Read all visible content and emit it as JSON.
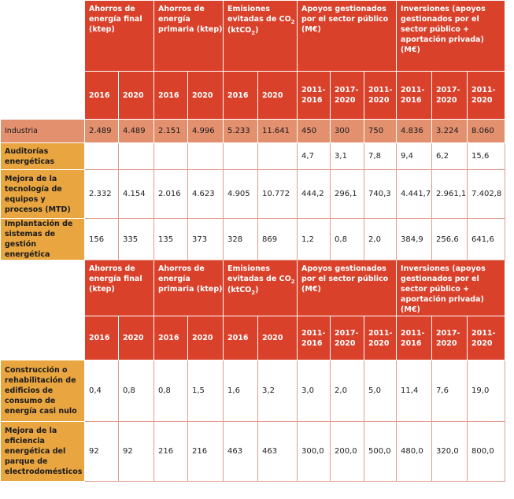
{
  "table1": {
    "groups": [
      {
        "label": "Ahorros de energía final (ktep)"
      },
      {
        "label": "Ahorros de energía primaria (ktep)"
      },
      {
        "label": "Emisiones evitadas de CO",
        "sub": "2",
        "tail": " (ktCO",
        "sub2": "2",
        "end": ")"
      },
      {
        "label": "Apoyos gestionados por el sector público (M€)"
      },
      {
        "label": "Inversiones (apoyos gestionados por el sector público + aportación privada) (M€)"
      }
    ],
    "subheaders": [
      "2016",
      "2020",
      "2016",
      "2020",
      "2016",
      "2020",
      "2011-2016",
      "2017-2020",
      "2011-2020",
      "2011-2016",
      "2017-2020",
      "2011-2020"
    ],
    "industry": {
      "label": "Industria",
      "values": [
        "2.489",
        "4.489",
        "2.151",
        "4.996",
        "5.233",
        "11.641",
        "450",
        "300",
        "750",
        "4.836",
        "3.224",
        "8.060"
      ]
    },
    "rows": [
      {
        "label": "Auditorías energéticas",
        "values": [
          "",
          "",
          "",
          "",
          "",
          "",
          "4,7",
          "3,1",
          "7,8",
          "9,4",
          "6,2",
          "15,6"
        ]
      },
      {
        "label": "Mejora de la tecnología de equipos y procesos (MTD)",
        "values": [
          "2.332",
          "4.154",
          "2.016",
          "4.623",
          "4.905",
          "10.772",
          "444,2",
          "296,1",
          "740,3",
          "4.441,7",
          "2.961,1",
          "7.402,8"
        ]
      },
      {
        "label": "Implantación de sistemas de gestión energética",
        "values": [
          "156",
          "335",
          "135",
          "373",
          "328",
          "869",
          "1,2",
          "0,8",
          "2,0",
          "384,9",
          "256,6",
          "641,6"
        ]
      }
    ]
  },
  "table2": {
    "groups": [
      {
        "label": "Ahorros de energía final (ktep)"
      },
      {
        "label": "Ahorros de energía primaria (ktep)"
      },
      {
        "label": "Emisiones evitadas de CO",
        "sub": "2",
        "tail": " (ktCO",
        "sub2": "2",
        "end": ")"
      },
      {
        "label": "Apoyos gestionados por el sector público (M€)"
      },
      {
        "label": "Inversiones (apoyos gestionados por el sector público + aportación privada) (M€)"
      }
    ],
    "subheaders": [
      "2016",
      "2020",
      "2016",
      "2020",
      "2016",
      "2020",
      "2011-2016",
      "2017-2020",
      "2011-2020",
      "2011-2016",
      "2017-2020",
      "2011-2020"
    ],
    "rows": [
      {
        "label": "Construcción o rehabilitación de edificios de consumo de energía casi nulo",
        "values": [
          "0,4",
          "0,8",
          "0,8",
          "1,5",
          "1,6",
          "3,2",
          "3,0",
          "2,0",
          "5,0",
          "11,4",
          "7,6",
          "19,0"
        ]
      },
      {
        "label": "Mejora de la eficiencia energética del parque de electrodomésticos",
        "values": [
          "92",
          "92",
          "216",
          "216",
          "463",
          "463",
          "300,0",
          "200,0",
          "500,0",
          "480,0",
          "320,0",
          "800,0"
        ]
      }
    ]
  }
}
